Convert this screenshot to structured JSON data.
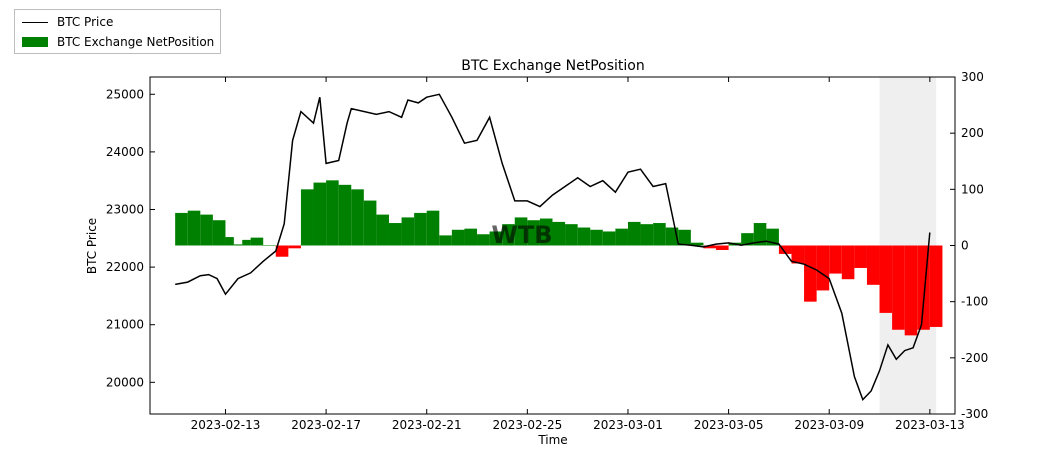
{
  "chart_data": {
    "type": "bar+line",
    "title": "BTC Exchange NetPosition",
    "xlabel": "Time",
    "ylabel_left": "BTC Price",
    "ylabel_right": "",
    "x_tick_labels": [
      "2023-02-13",
      "2023-02-17",
      "2023-02-21",
      "2023-02-25",
      "2023-03-01",
      "2023-03-05",
      "2023-03-09",
      "2023-03-13"
    ],
    "y_left_ticks": [
      20000,
      21000,
      22000,
      23000,
      24000,
      25000
    ],
    "y_right_ticks": [
      -300,
      -200,
      -100,
      0,
      100,
      200,
      300
    ],
    "y_left_lim": [
      19450,
      25300
    ],
    "y_right_lim": [
      -300,
      300
    ],
    "x_start": "2023-02-10",
    "x_end": "2023-03-14",
    "legend": {
      "position": "outside-top-left",
      "entries": [
        "BTC Price",
        "BTC Exchange NetPosition"
      ]
    },
    "colors": {
      "positive": "#008000",
      "negative": "#ff0000",
      "price_line": "#000000"
    },
    "watermark": "WTB",
    "series": [
      {
        "name": "BTC Price",
        "axis": "left",
        "type": "line",
        "points": [
          [
            "2023-02-11",
            21700
          ],
          [
            "2023-02-11T12:00",
            21740
          ],
          [
            "2023-02-12",
            21850
          ],
          [
            "2023-02-12T08:00",
            21870
          ],
          [
            "2023-02-12T16:00",
            21800
          ],
          [
            "2023-02-13",
            21530
          ],
          [
            "2023-02-13T12:00",
            21800
          ],
          [
            "2023-02-14",
            21900
          ],
          [
            "2023-02-14T12:00",
            22100
          ],
          [
            "2023-02-15",
            22280
          ],
          [
            "2023-02-15T08:00",
            22750
          ],
          [
            "2023-02-15T16:00",
            24200
          ],
          [
            "2023-02-16",
            24700
          ],
          [
            "2023-02-16T12:00",
            24500
          ],
          [
            "2023-02-16T18:00",
            24950
          ],
          [
            "2023-02-17",
            23800
          ],
          [
            "2023-02-17T12:00",
            23850
          ],
          [
            "2023-02-17T20:00",
            24500
          ],
          [
            "2023-02-18",
            24750
          ],
          [
            "2023-02-19",
            24650
          ],
          [
            "2023-02-19T12:00",
            24700
          ],
          [
            "2023-02-20",
            24600
          ],
          [
            "2023-02-20T06:00",
            24900
          ],
          [
            "2023-02-20T16:00",
            24850
          ],
          [
            "2023-02-21",
            24950
          ],
          [
            "2023-02-21T12:00",
            25000
          ],
          [
            "2023-02-22",
            24600
          ],
          [
            "2023-02-22T12:00",
            24150
          ],
          [
            "2023-02-23",
            24200
          ],
          [
            "2023-02-23T12:00",
            24600
          ],
          [
            "2023-02-24",
            23800
          ],
          [
            "2023-02-24T12:00",
            23150
          ],
          [
            "2023-02-25",
            23150
          ],
          [
            "2023-02-25T12:00",
            23050
          ],
          [
            "2023-02-26",
            23250
          ],
          [
            "2023-02-27",
            23550
          ],
          [
            "2023-02-27T12:00",
            23400
          ],
          [
            "2023-02-28",
            23500
          ],
          [
            "2023-02-28T12:00",
            23300
          ],
          [
            "2023-03-01",
            23650
          ],
          [
            "2023-03-01T12:00",
            23700
          ],
          [
            "2023-03-02",
            23400
          ],
          [
            "2023-03-02T12:00",
            23450
          ],
          [
            "2023-03-03",
            22400
          ],
          [
            "2023-03-03T12:00",
            22380
          ],
          [
            "2023-03-04",
            22350
          ],
          [
            "2023-03-04T12:00",
            22400
          ],
          [
            "2023-03-05",
            22420
          ],
          [
            "2023-03-05T12:00",
            22380
          ],
          [
            "2023-03-06",
            22420
          ],
          [
            "2023-03-06T12:00",
            22450
          ],
          [
            "2023-03-07",
            22400
          ],
          [
            "2023-03-07T12:00",
            22100
          ],
          [
            "2023-03-08",
            22050
          ],
          [
            "2023-03-08T12:00",
            21950
          ],
          [
            "2023-03-09",
            21800
          ],
          [
            "2023-03-09T12:00",
            21200
          ],
          [
            "2023-03-10",
            20100
          ],
          [
            "2023-03-10T08:00",
            19700
          ],
          [
            "2023-03-10T16:00",
            19850
          ],
          [
            "2023-03-11",
            20200
          ],
          [
            "2023-03-11T08:00",
            20650
          ],
          [
            "2023-03-11T16:00",
            20400
          ],
          [
            "2023-03-12",
            20550
          ],
          [
            "2023-03-12T08:00",
            20600
          ],
          [
            "2023-03-12T16:00",
            21000
          ],
          [
            "2023-03-13",
            22600
          ]
        ]
      },
      {
        "name": "BTC Exchange NetPosition",
        "axis": "right",
        "type": "bar",
        "points": [
          [
            "2023-02-11",
            58
          ],
          [
            "2023-02-11T12:00",
            62
          ],
          [
            "2023-02-12",
            55
          ],
          [
            "2023-02-12T12:00",
            45
          ],
          [
            "2023-02-13",
            15
          ],
          [
            "2023-02-13T08:00",
            2
          ],
          [
            "2023-02-13T16:00",
            10
          ],
          [
            "2023-02-14",
            14
          ],
          [
            "2023-02-14T12:00",
            0
          ],
          [
            "2023-02-15",
            -20
          ],
          [
            "2023-02-15T12:00",
            -5
          ],
          [
            "2023-02-16",
            100
          ],
          [
            "2023-02-16T12:00",
            112
          ],
          [
            "2023-02-17",
            116
          ],
          [
            "2023-02-17T12:00",
            108
          ],
          [
            "2023-02-18",
            100
          ],
          [
            "2023-02-18T12:00",
            80
          ],
          [
            "2023-02-19",
            55
          ],
          [
            "2023-02-19T12:00",
            40
          ],
          [
            "2023-02-20",
            50
          ],
          [
            "2023-02-20T12:00",
            58
          ],
          [
            "2023-02-21",
            62
          ],
          [
            "2023-02-21T12:00",
            18
          ],
          [
            "2023-02-22",
            28
          ],
          [
            "2023-02-22T12:00",
            30
          ],
          [
            "2023-02-23",
            20
          ],
          [
            "2023-02-23T12:00",
            25
          ],
          [
            "2023-02-24",
            38
          ],
          [
            "2023-02-24T12:00",
            50
          ],
          [
            "2023-02-25",
            45
          ],
          [
            "2023-02-25T12:00",
            48
          ],
          [
            "2023-02-26",
            42
          ],
          [
            "2023-02-26T12:00",
            38
          ],
          [
            "2023-02-27",
            32
          ],
          [
            "2023-02-27T12:00",
            28
          ],
          [
            "2023-02-28",
            25
          ],
          [
            "2023-02-28T12:00",
            30
          ],
          [
            "2023-03-01",
            42
          ],
          [
            "2023-03-01T12:00",
            38
          ],
          [
            "2023-03-02",
            40
          ],
          [
            "2023-03-02T12:00",
            32
          ],
          [
            "2023-03-03",
            28
          ],
          [
            "2023-03-03T12:00",
            5
          ],
          [
            "2023-03-04",
            -5
          ],
          [
            "2023-03-04T12:00",
            -8
          ],
          [
            "2023-03-05",
            5
          ],
          [
            "2023-03-05T12:00",
            22
          ],
          [
            "2023-03-06",
            40
          ],
          [
            "2023-03-06T12:00",
            30
          ],
          [
            "2023-03-07",
            -15
          ],
          [
            "2023-03-07T12:00",
            -32
          ],
          [
            "2023-03-08",
            -100
          ],
          [
            "2023-03-08T12:00",
            -80
          ],
          [
            "2023-03-09",
            -50
          ],
          [
            "2023-03-09T12:00",
            -60
          ],
          [
            "2023-03-10",
            -40
          ],
          [
            "2023-03-10T12:00",
            -70
          ],
          [
            "2023-03-11",
            -120
          ],
          [
            "2023-03-11T12:00",
            -150
          ],
          [
            "2023-03-12",
            -160
          ],
          [
            "2023-03-12T12:00",
            -150
          ],
          [
            "2023-03-13",
            -145
          ]
        ]
      }
    ]
  }
}
